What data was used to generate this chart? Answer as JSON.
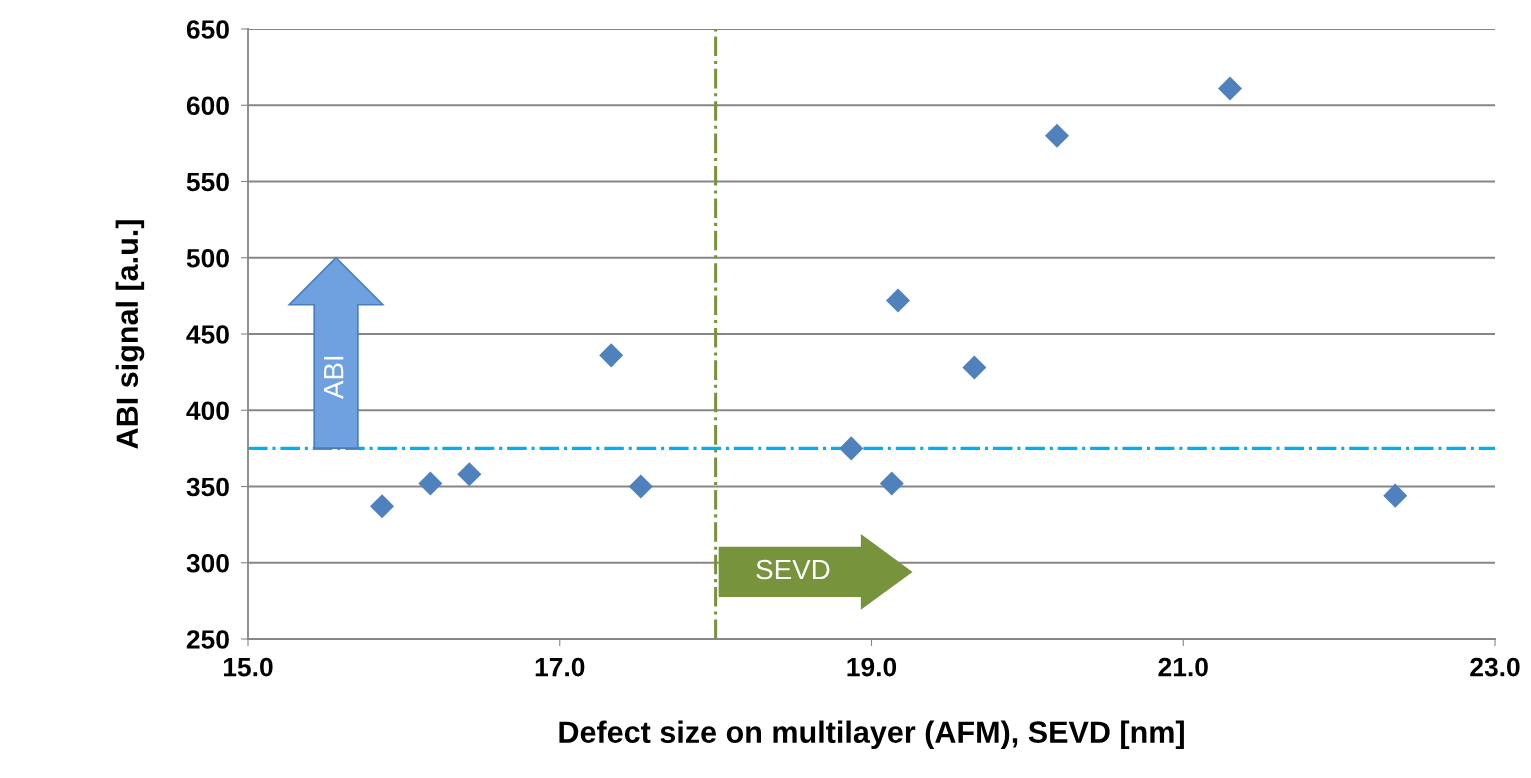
{
  "chart_data": {
    "type": "scatter",
    "xlabel": "Defect size on multilayer (AFM), SEVD [nm]",
    "ylabel": "ABI signal [a.u.]",
    "x": [
      15.86,
      16.17,
      16.42,
      17.33,
      17.52,
      18.87,
      19.13,
      19.17,
      19.66,
      20.19,
      21.3,
      22.36
    ],
    "series": [
      {
        "color": "#4f81bd",
        "values": [
          337,
          352,
          358,
          436,
          350,
          375,
          352,
          472,
          428,
          580,
          611,
          344
        ]
      }
    ],
    "marker": "diamond",
    "grid": "y",
    "legend": false,
    "xlim": [
      15,
      23
    ],
    "xticks": [
      {
        "value": 15,
        "label": "15.0"
      },
      {
        "value": 17,
        "label": "17.0"
      },
      {
        "value": 19,
        "label": "19.0"
      },
      {
        "value": 21,
        "label": "21.0"
      },
      {
        "value": 23,
        "label": "23.0"
      }
    ],
    "ylim": [
      250,
      650
    ],
    "yticks": [
      250,
      300,
      350,
      400,
      450,
      500,
      550,
      600,
      650
    ],
    "ref_lines": [
      {
        "axis": "x",
        "value": 18.0,
        "color": "#77933c",
        "line_style": "dashdot"
      },
      {
        "axis": "y",
        "value": 375,
        "color": "#00b0f0",
        "line_style": "dashdot"
      }
    ],
    "annotations": [
      "ABI",
      "SEVD"
    ]
  }
}
